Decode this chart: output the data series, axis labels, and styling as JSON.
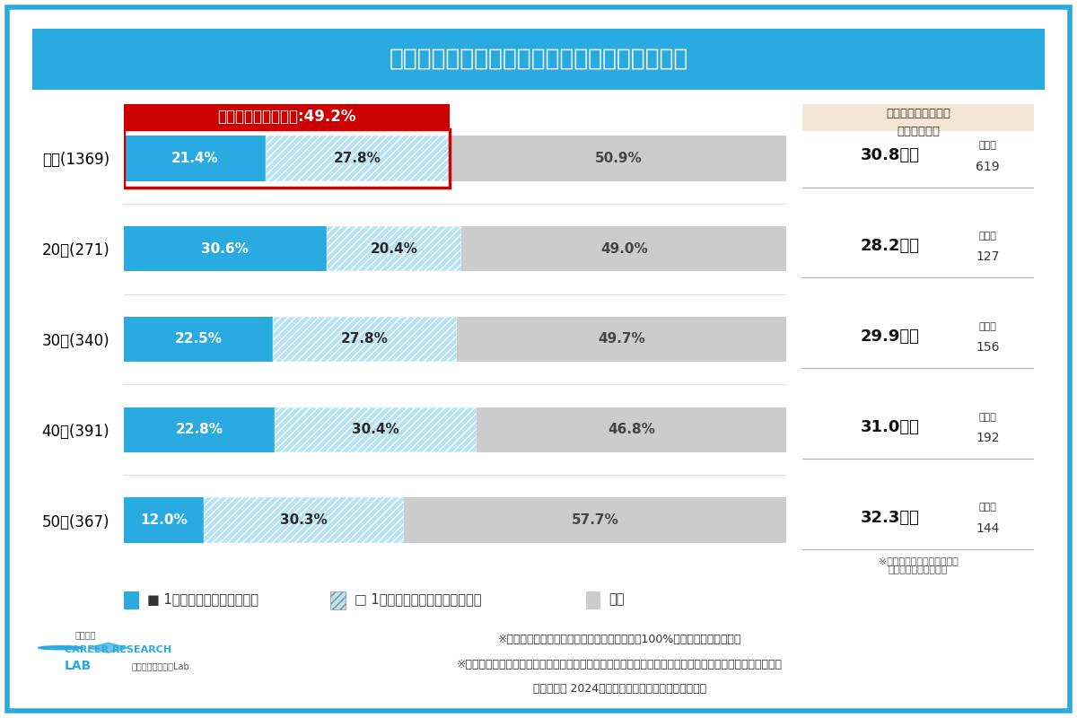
{
  "title": "「賞与が少ない」ことが理由で転職をした経験",
  "categories": [
    "全体(1369)",
    "20代(271)",
    "30代(340)",
    "40代(391)",
    "50代(367)"
  ],
  "seg1_values": [
    21.4,
    30.6,
    22.5,
    22.8,
    12.0
  ],
  "seg2_values": [
    27.8,
    20.4,
    27.8,
    30.4,
    30.3
  ],
  "seg3_values": [
    50.9,
    49.0,
    49.7,
    46.8,
    57.7
  ],
  "seg1_color": "#29ABE2",
  "seg2_color": "#B8E3F2",
  "seg3_color": "#CCCCCC",
  "seg1_label": "1番大きな転職理由だった",
  "seg2_label": "1番ではないが転職理由だった",
  "seg3_label": "ない",
  "avg_values": [
    "30.8万円",
    "28.2万円",
    "29.9万円",
    "31.0万円",
    "32.3万円"
  ],
  "response_counts": [
    "619",
    "127",
    "156",
    "192",
    "144"
  ],
  "avg_header_line1": "転職理由となった賞",
  "avg_header_line2": "与額の平均値",
  "annotation_text": "転職した経験がある:49.2%",
  "ann_color": "#CC0000",
  "title_bg": "#29ABE2",
  "right_panel_bg": "#F5E6D3",
  "footer_note1": "※調査結果は端数四捨五入の都合により合計が100%にならない場合がある",
  "footer_note2": "※割合の算出にはウエイトバック集計を用いており、平均値の算出にはウエイトバック集計は用いていない",
  "footer_note3": "「マイナビ 2024年冬ボーナスと転職に関する調査」",
  "avg_note_line1": "※平均値は「答えたくない」",
  "avg_note_line2": "を除いて集計している",
  "kaitosuu": "回答数"
}
